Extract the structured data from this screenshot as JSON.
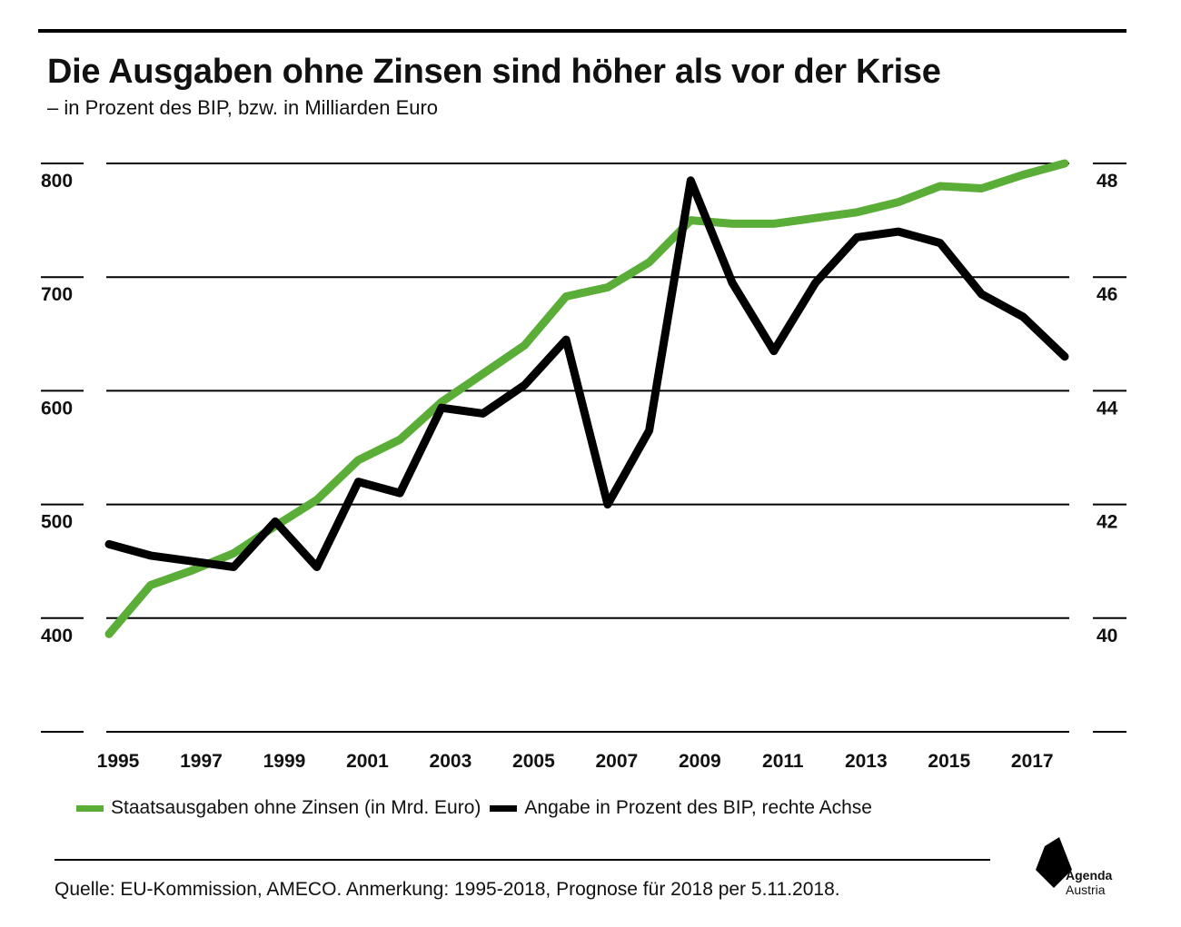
{
  "title": "Die Ausgaben ohne Zinsen sind höher als vor der Krise",
  "subtitle": "– in Prozent des BIP, bzw. in Milliarden Euro",
  "legend": {
    "green_label": "Staatsausgaben ohne Zinsen (in Mrd. Euro)",
    "black_label": "Angabe in Prozent des BIP, rechte Achse"
  },
  "source": "Quelle: EU-Kommission, AMECO. Anmerkung: 1995-2018, Prognose für 2018 per 5.11.2018.",
  "logo": {
    "line1": "Agenda",
    "line2": "Austria",
    "icon": "agenda-austria-logo-icon"
  },
  "colors": {
    "green": "#5aad37",
    "black": "#000000"
  },
  "chart_data": {
    "type": "line",
    "title": "Die Ausgaben ohne Zinsen sind höher als vor der Krise",
    "subtitle": "– in Prozent des BIP, bzw. in Milliarden Euro",
    "x": [
      1995,
      1996,
      1997,
      1998,
      1999,
      2000,
      2001,
      2002,
      2003,
      2004,
      2005,
      2006,
      2007,
      2008,
      2009,
      2010,
      2011,
      2012,
      2013,
      2014,
      2015,
      2016,
      2017,
      2018
    ],
    "x_tick_labels": [
      "1995",
      "1997",
      "1999",
      "2001",
      "2003",
      "2005",
      "2007",
      "2009",
      "2011",
      "2013",
      "2015",
      "2017"
    ],
    "y_left": {
      "ticks": [
        400,
        500,
        600,
        700,
        800
      ],
      "range": [
        300,
        800
      ]
    },
    "y_right": {
      "ticks": [
        40,
        42,
        44,
        46,
        48
      ],
      "range": [
        38,
        48
      ]
    },
    "grid": true,
    "series": [
      {
        "name": "Staatsausgaben ohne Zinsen (in Mrd. Euro)",
        "axis": "left",
        "color": "#5aad37",
        "values": [
          386,
          429,
          442,
          457,
          481,
          504,
          539,
          557,
          590,
          615,
          640,
          683,
          691,
          713,
          750,
          747,
          747,
          752,
          757,
          766,
          780,
          778,
          790,
          800
        ]
      },
      {
        "name": "Angabe in Prozent des BIP, rechte Achse",
        "axis": "right",
        "color": "#000000",
        "values": [
          41.3,
          41.1,
          41.0,
          40.9,
          41.7,
          40.9,
          42.4,
          42.2,
          43.7,
          43.6,
          44.1,
          44.9,
          42.0,
          43.3,
          47.7,
          45.9,
          44.7,
          45.9,
          46.7,
          46.8,
          46.6,
          45.7,
          45.3,
          44.6
        ]
      }
    ]
  }
}
